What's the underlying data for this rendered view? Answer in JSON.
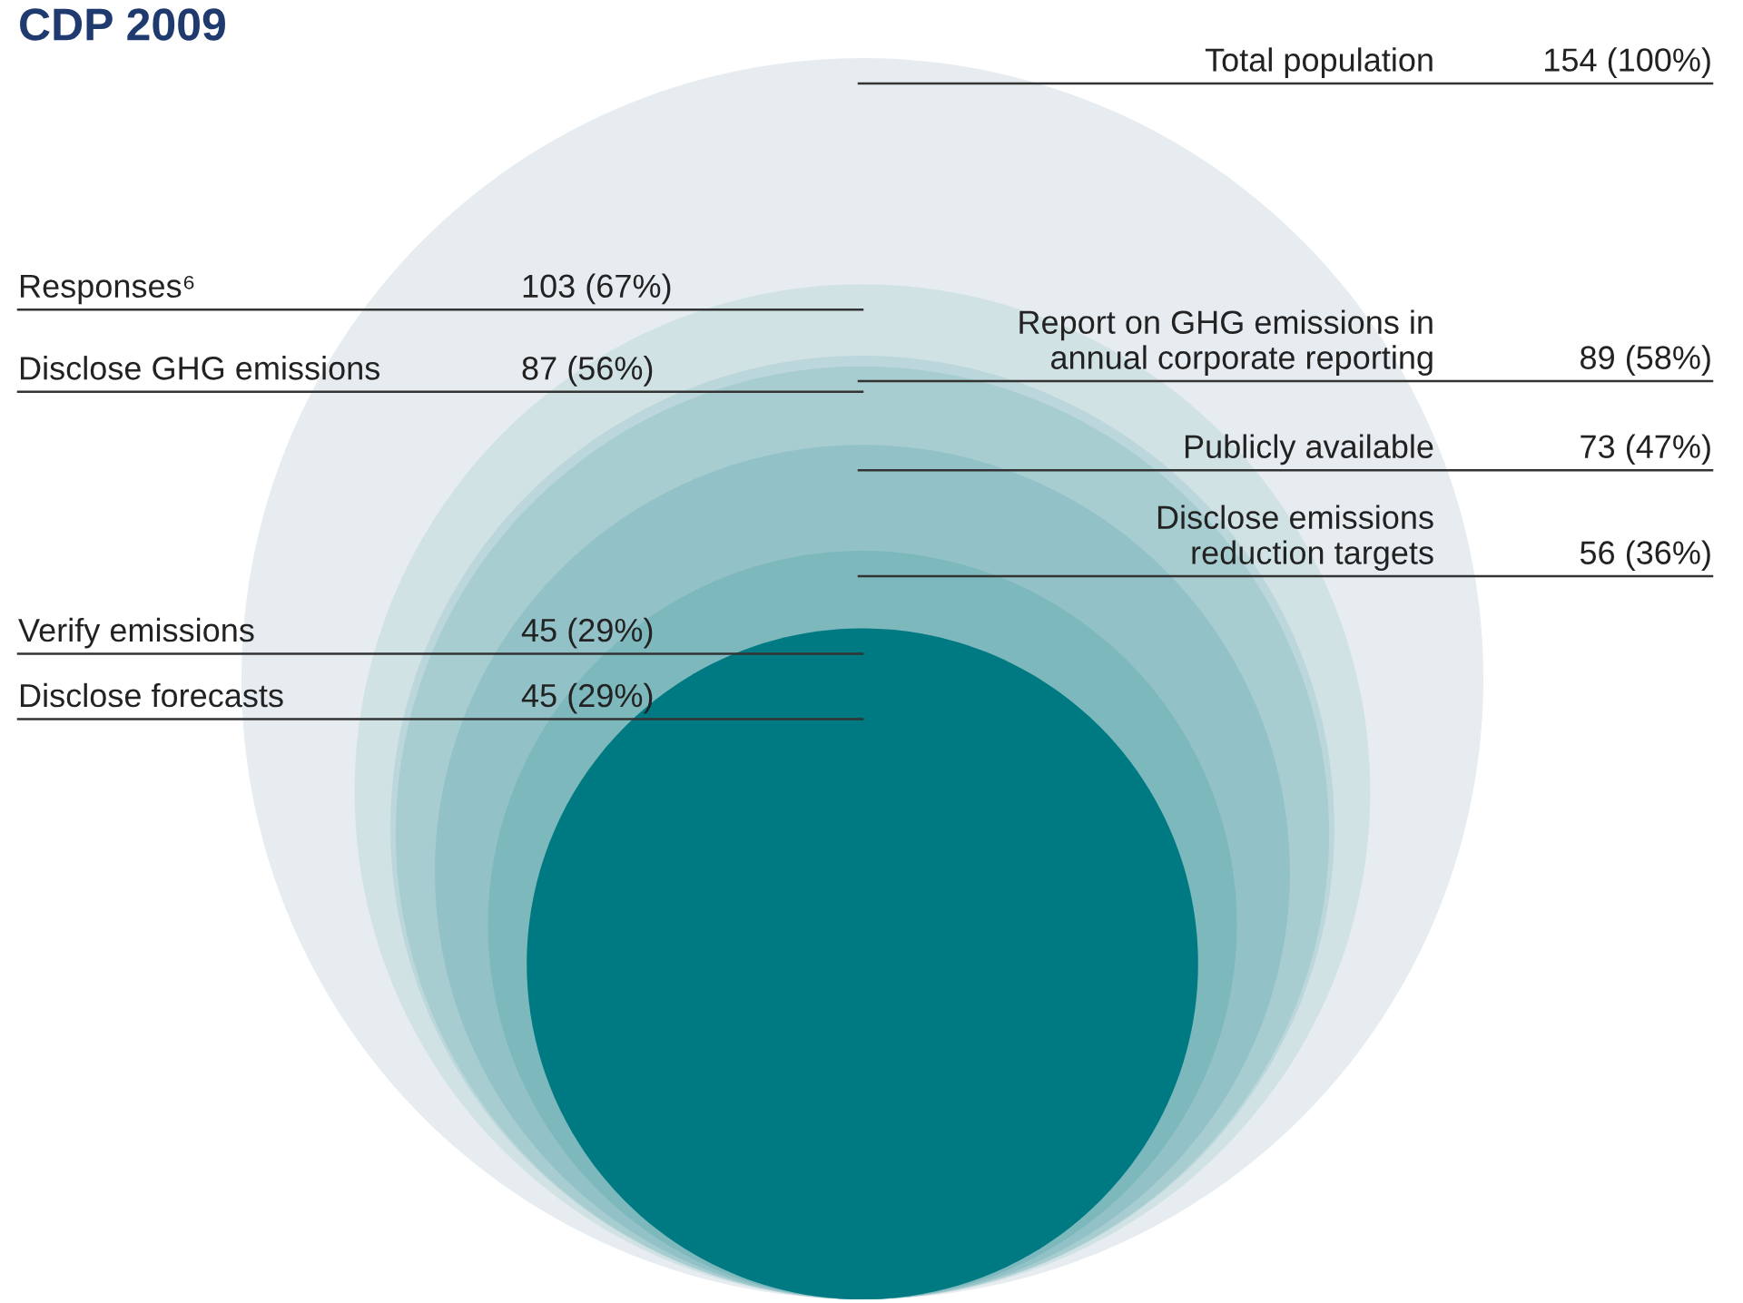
{
  "chart_data": {
    "type": "other",
    "title": "CDP 2009",
    "categories": [
      "Total population",
      "Responses⁶",
      "Report on GHG emissions in\nannual corporate reporting",
      "Disclose GHG emissions",
      "Publicly available",
      "Disclose emissions\nreduction targets",
      "Verify emissions",
      "Disclose forecasts"
    ],
    "values": [
      154,
      103,
      89,
      87,
      73,
      56,
      45,
      45
    ],
    "value_labels": [
      "154 (100%)",
      "103 (67%)",
      "89 (58%)",
      "87 (56%)",
      "73 (47%)",
      "56 (36%)",
      "45 (29%)",
      "45 (29%)"
    ]
  }
}
